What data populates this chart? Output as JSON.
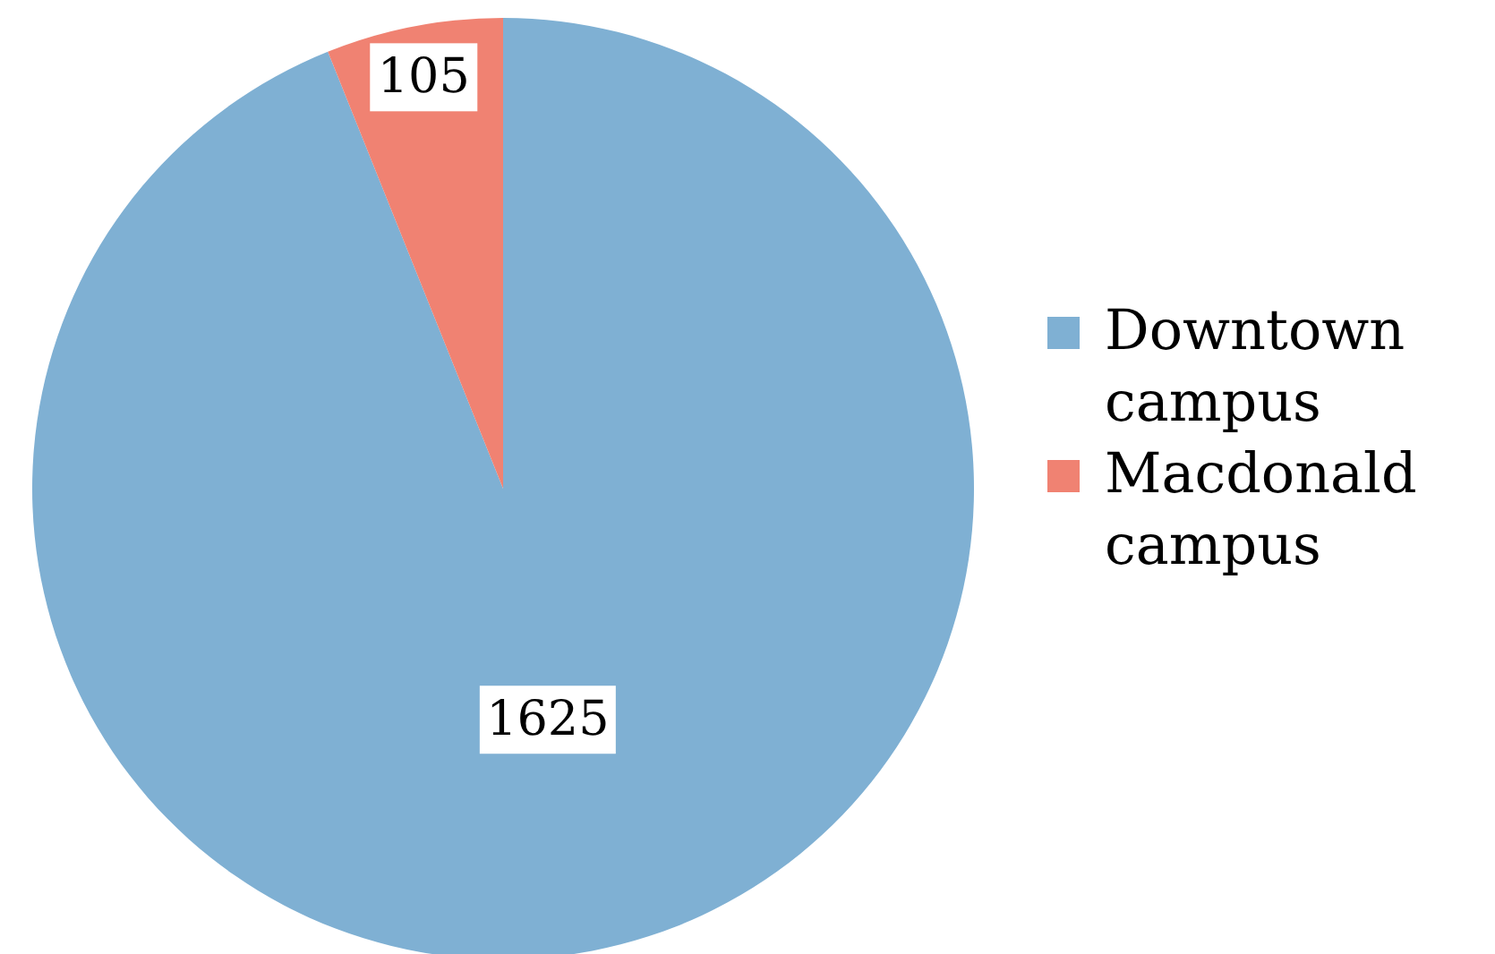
{
  "chart_data": {
    "type": "pie",
    "categories": [
      "Downtown campus",
      "Macdonald campus"
    ],
    "values": [
      1625,
      105
    ],
    "colors": [
      "#7fb0d3",
      "#f08272"
    ],
    "data_labels": true,
    "legend": "right"
  }
}
